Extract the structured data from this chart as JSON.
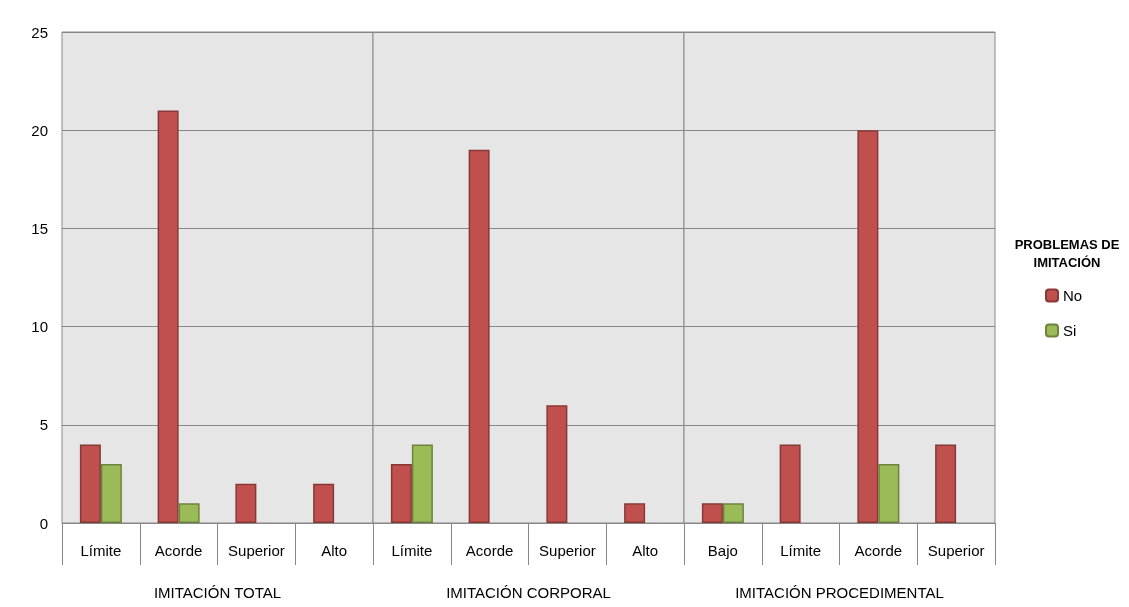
{
  "chart_data": [
    {
      "type": "bar",
      "xlabel": "IMITACIÓN TOTAL",
      "categories": [
        "Límite",
        "Acorde",
        "Superior",
        "Alto"
      ],
      "legend": "right",
      "legend_title": "PROBLEMAS DE\nIMITACIÓN",
      "series": [
        {
          "name": "No",
          "color": "#c0504d",
          "values": [
            4,
            21,
            2,
            2
          ]
        },
        {
          "name": "Si",
          "color": "#9bbb59",
          "values": [
            3,
            1,
            null,
            null
          ]
        }
      ],
      "ylim": [
        0,
        25
      ],
      "yticks": [
        0,
        5,
        10,
        15,
        20,
        25
      ],
      "grid": "y"
    },
    {
      "type": "bar",
      "xlabel": "IMITACIÓN CORPORAL",
      "categories": [
        "Límite",
        "Acorde",
        "Superior",
        "Alto"
      ],
      "series": [
        {
          "color": "#c0504d",
          "values": [
            3,
            19,
            6,
            1
          ]
        },
        {
          "color": "#9bbb59",
          "values": [
            4,
            null,
            null,
            null
          ]
        }
      ],
      "ylim": [
        0,
        25
      ],
      "yticks": [
        0,
        5,
        10,
        15,
        20,
        25
      ],
      "grid": "y",
      "tick_labels": "x"
    },
    {
      "type": "bar",
      "xlabel": "IMITACIÓN PROCEDIMENTAL",
      "categories": [
        "Bajo",
        "Límite",
        "Acorde",
        "Superior"
      ],
      "series": [
        {
          "color": "#c0504d",
          "values": [
            1,
            4,
            20,
            4
          ]
        },
        {
          "color": "#9bbb59",
          "values": [
            1,
            null,
            3,
            null
          ]
        }
      ],
      "ylim": [
        0,
        25
      ],
      "yticks": [
        0,
        5,
        10,
        15,
        20,
        25
      ],
      "grid": "y",
      "tick_labels": "x"
    }
  ]
}
